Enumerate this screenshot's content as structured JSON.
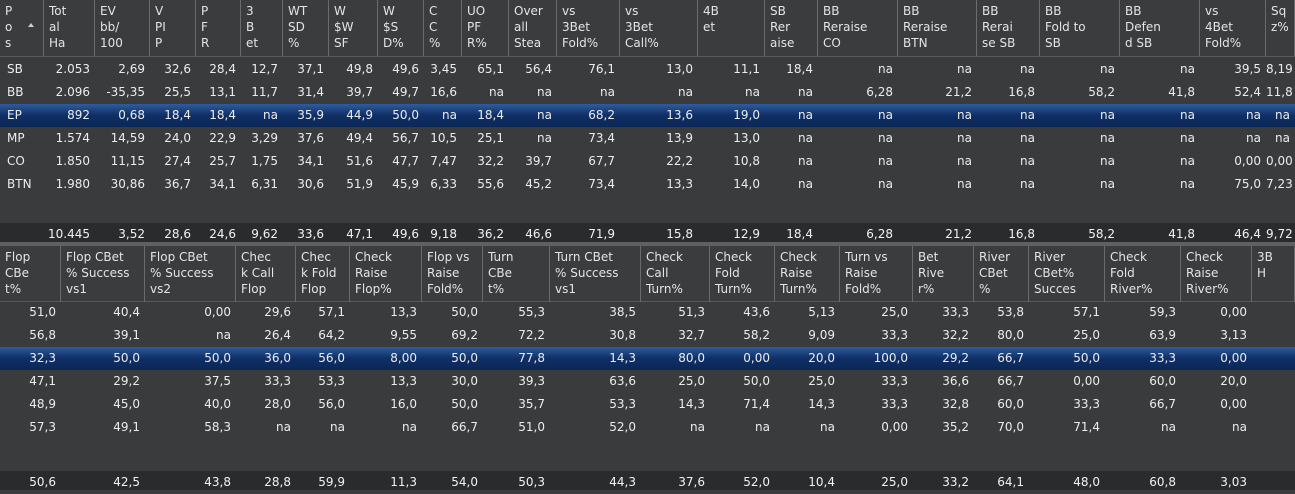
{
  "top_table": {
    "headers": [
      "P\no\ns",
      "Tot\nal\nHa",
      "EV\nbb/\n100",
      "V\nPI\nP",
      "P\nF\nR",
      "3\nB\net",
      "WT\nSD\n%",
      "W\n$W\nSF",
      "W\n$S\nD%",
      "C\nC\n%",
      "UO\nPF\nR%",
      "Over\nall\nStea",
      "vs\n3Bet\nFold%",
      "vs\n3Bet\nCall%",
      "4B\net",
      "SB\nRer\naise",
      "BB\nReraise\nCO",
      "BB\nReraise\nBTN",
      "BB\nRerai\nse SB",
      "BB\nFold to\nSB",
      "BB\nDefen\nd SB",
      "vs\n4Bet\nFold%",
      "Sq\nz%"
    ],
    "rows": [
      [
        "SB",
        "2.053",
        "2,69",
        "32,6",
        "28,4",
        "12,7",
        "37,1",
        "49,8",
        "49,6",
        "3,45",
        "65,1",
        "56,4",
        "76,1",
        "13,0",
        "11,1",
        "18,4",
        "na",
        "na",
        "na",
        "na",
        "na",
        "39,5",
        "8,19"
      ],
      [
        "BB",
        "2.096",
        "-35,35",
        "25,5",
        "13,1",
        "11,7",
        "31,4",
        "39,7",
        "49,7",
        "16,6",
        "na",
        "na",
        "na",
        "na",
        "na",
        "na",
        "6,28",
        "21,2",
        "16,8",
        "58,2",
        "41,8",
        "52,4",
        "11,8"
      ],
      [
        "EP",
        "892",
        "0,68",
        "18,4",
        "18,4",
        "na",
        "35,9",
        "44,9",
        "50,0",
        "na",
        "18,4",
        "na",
        "68,2",
        "13,6",
        "19,0",
        "na",
        "na",
        "na",
        "na",
        "na",
        "na",
        "na",
        "na"
      ],
      [
        "MP",
        "1.574",
        "14,59",
        "24,0",
        "22,9",
        "3,29",
        "37,6",
        "49,4",
        "56,7",
        "10,5",
        "25,1",
        "na",
        "73,4",
        "13,9",
        "13,0",
        "na",
        "na",
        "na",
        "na",
        "na",
        "na",
        "na",
        "na"
      ],
      [
        "CO",
        "1.850",
        "11,15",
        "27,4",
        "25,7",
        "1,75",
        "34,1",
        "51,6",
        "47,7",
        "7,47",
        "32,2",
        "39,7",
        "67,7",
        "22,2",
        "10,8",
        "na",
        "na",
        "na",
        "na",
        "na",
        "na",
        "0,00",
        "0,00"
      ],
      [
        "BTN",
        "1.980",
        "30,86",
        "36,7",
        "34,1",
        "6,31",
        "30,6",
        "51,9",
        "45,9",
        "6,33",
        "55,6",
        "45,2",
        "73,4",
        "13,3",
        "14,0",
        "na",
        "na",
        "na",
        "na",
        "na",
        "na",
        "75,0",
        "7,23"
      ]
    ],
    "total": [
      "",
      "10.445",
      "3,52",
      "28,6",
      "24,6",
      "9,62",
      "33,6",
      "47,1",
      "49,6",
      "9,18",
      "36,2",
      "46,6",
      "71,9",
      "15,8",
      "12,9",
      "18,4",
      "6,28",
      "21,2",
      "16,8",
      "58,2",
      "41,8",
      "46,4",
      "9,72"
    ],
    "selected_row": 2
  },
  "bottom_table": {
    "headers": [
      "Flop\nCBe\nt%",
      "Flop CBet\n% Success\nvs1",
      "Flop CBet\n% Success\nvs2",
      "Chec\nk Call\nFlop",
      "Chec\nk Fold\nFlop",
      "Check\nRaise\nFlop%",
      "Flop vs\nRaise\nFold%",
      "Turn\nCBe\nt%",
      "Turn CBet\n% Success\nvs1",
      "Check\nCall\nTurn%",
      "Check\nFold\nTurn%",
      "Check\nRaise\nTurn%",
      "Turn vs\nRaise\nFold%",
      "Bet\nRive\nr%",
      "River\nCBet\n%",
      "River\nCBet%\nSucces",
      "Check\nFold\nRiver%",
      "Check\nRaise\nRiver%",
      "3B\nH"
    ],
    "rows": [
      [
        "51,0",
        "40,4",
        "0,00",
        "29,6",
        "57,1",
        "13,3",
        "50,0",
        "55,3",
        "38,5",
        "51,3",
        "43,6",
        "5,13",
        "25,0",
        "33,3",
        "53,8",
        "57,1",
        "59,3",
        "0,00",
        ""
      ],
      [
        "56,8",
        "39,1",
        "na",
        "26,4",
        "64,2",
        "9,55",
        "69,2",
        "72,2",
        "30,8",
        "32,7",
        "58,2",
        "9,09",
        "33,3",
        "32,2",
        "80,0",
        "25,0",
        "63,9",
        "3,13",
        ""
      ],
      [
        "32,3",
        "50,0",
        "50,0",
        "36,0",
        "56,0",
        "8,00",
        "50,0",
        "77,8",
        "14,3",
        "80,0",
        "0,00",
        "20,0",
        "100,0",
        "29,2",
        "66,7",
        "50,0",
        "33,3",
        "0,00",
        ""
      ],
      [
        "47,1",
        "29,2",
        "37,5",
        "33,3",
        "53,3",
        "13,3",
        "30,0",
        "39,3",
        "63,6",
        "25,0",
        "50,0",
        "25,0",
        "33,3",
        "36,6",
        "66,7",
        "0,00",
        "60,0",
        "20,0",
        ""
      ],
      [
        "48,9",
        "45,0",
        "40,0",
        "28,0",
        "56,0",
        "16,0",
        "50,0",
        "35,7",
        "53,3",
        "14,3",
        "71,4",
        "14,3",
        "33,3",
        "32,8",
        "60,0",
        "33,3",
        "66,7",
        "0,00",
        ""
      ],
      [
        "57,3",
        "49,1",
        "58,3",
        "na",
        "na",
        "na",
        "66,7",
        "51,0",
        "52,0",
        "na",
        "na",
        "na",
        "0,00",
        "35,2",
        "70,0",
        "71,4",
        "na",
        "na",
        ""
      ]
    ],
    "total": [
      "50,6",
      "42,5",
      "43,8",
      "28,8",
      "59,9",
      "11,3",
      "54,0",
      "50,3",
      "44,3",
      "37,6",
      "52,0",
      "10,4",
      "25,0",
      "33,2",
      "64,1",
      "48,0",
      "60,8",
      "3,03",
      ""
    ],
    "selected_row": 2
  }
}
